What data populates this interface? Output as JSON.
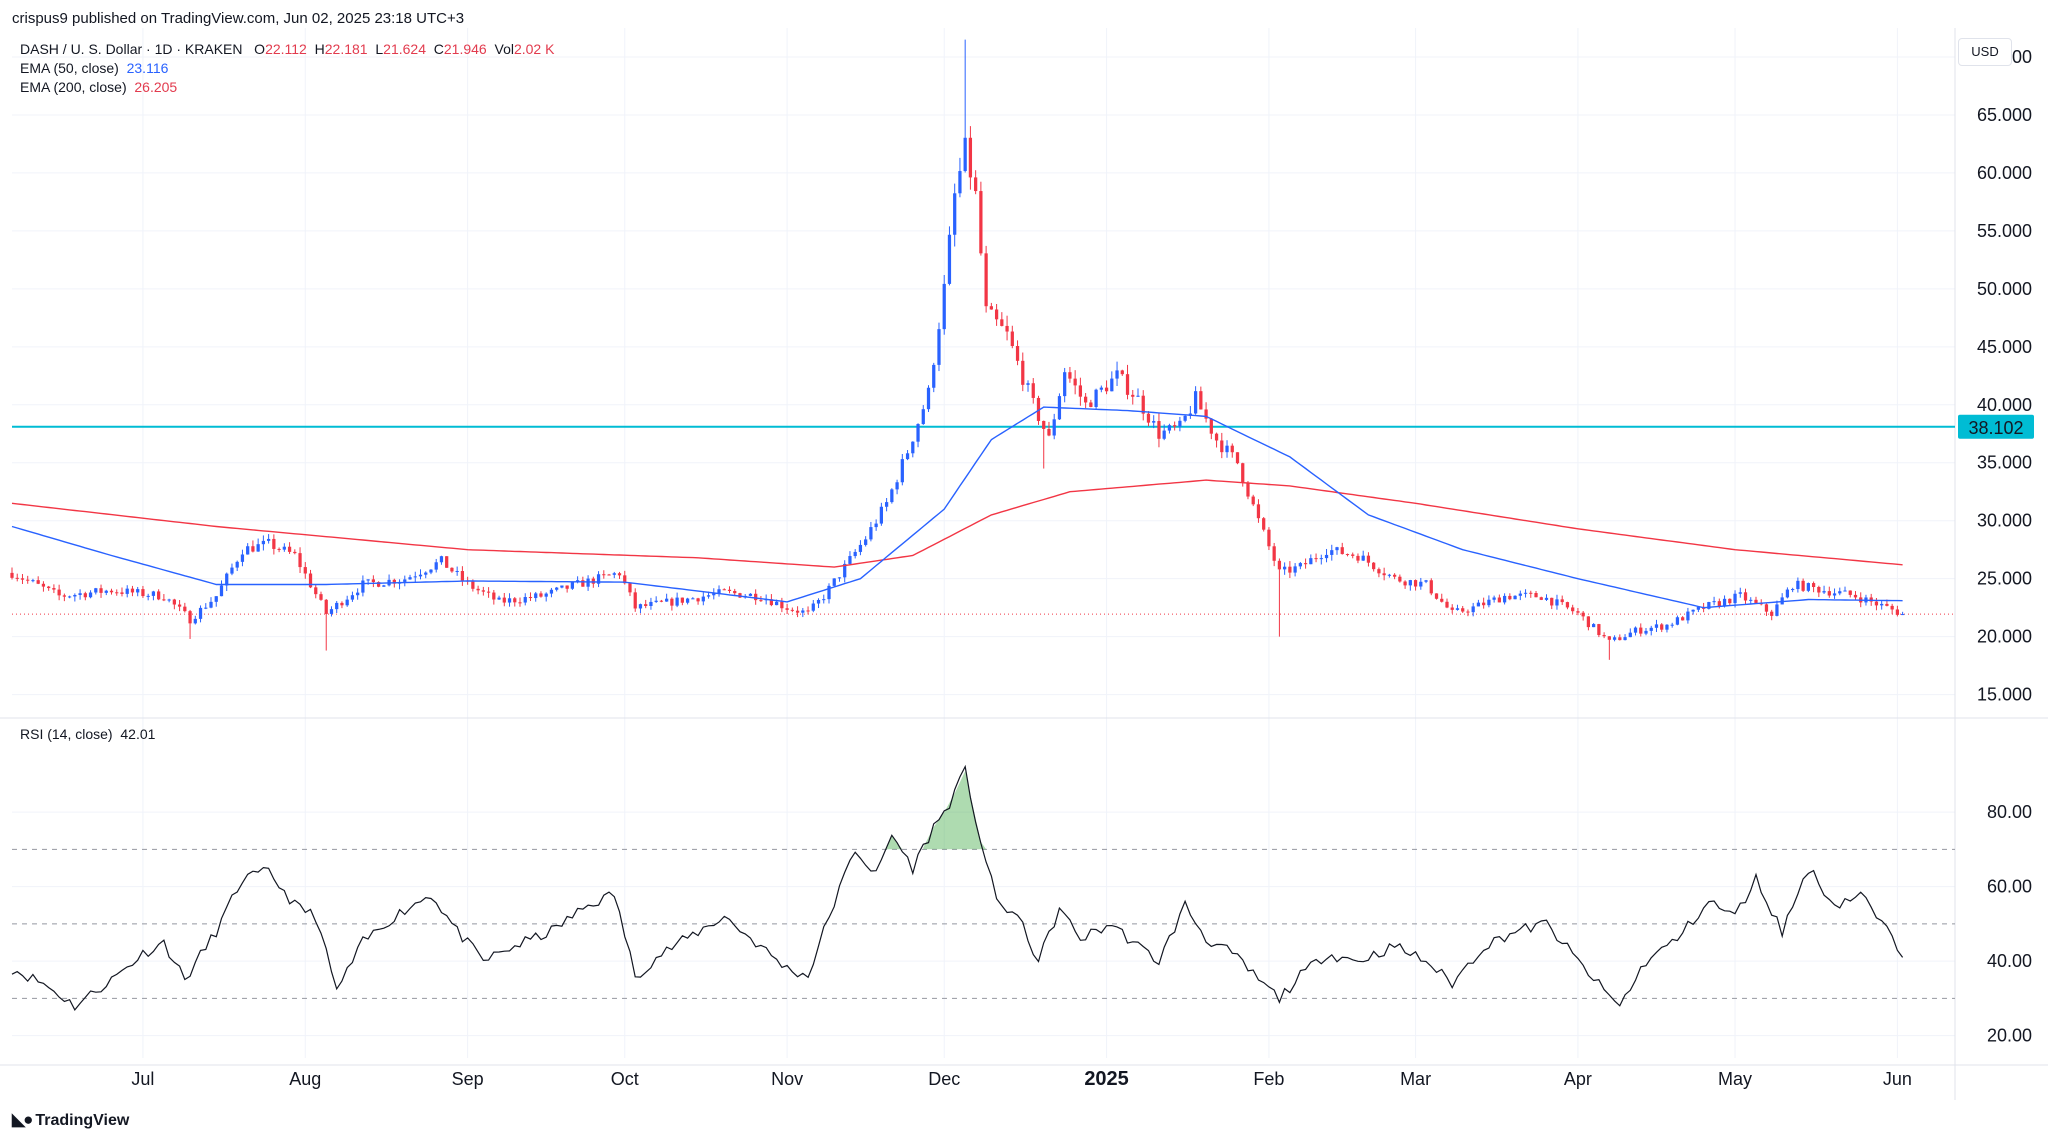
{
  "header": {
    "published": "crispus9 published on TradingView.com, Jun 02, 2025 23:18 UTC+3",
    "symbol": "DASH / U. S. Dollar · 1D · KRAKEN",
    "o_label": "O",
    "o_value": "22.112",
    "h_label": "H",
    "h_value": "22.181",
    "l_label": "L",
    "l_value": "21.624",
    "c_label": "C",
    "c_value": "21.946",
    "vol_label": "Vol",
    "vol_value": "2.02 K",
    "ema50_label": "EMA (50, close)",
    "ema50_value": "23.116",
    "ema200_label": "EMA (200, close)",
    "ema200_value": "26.205"
  },
  "currency_label": "USD",
  "brand": "TradingView",
  "colors": {
    "up": "#2962ff",
    "down": "#f23645",
    "ema50": "#2962ff",
    "ema200": "#f23645",
    "level": "#00bcd4",
    "grid": "#f0f3fa",
    "text": "#131722",
    "rsi": "#131722",
    "rsi_fill": "#4caf50"
  },
  "chart_data": [
    {
      "type": "candlestick",
      "title": "DASH / U. S. Dollar · 1D · KRAKEN",
      "ylim": [
        13.5,
        72.5
      ],
      "y_ticks": [
        "15.000",
        "20.000",
        "25.000",
        "30.000",
        "35.000",
        "40.000",
        "45.000",
        "50.000",
        "55.000",
        "60.000",
        "65.000",
        "70.000"
      ],
      "y_tick_values": [
        15,
        20,
        25,
        30,
        35,
        40,
        45,
        50,
        55,
        60,
        65,
        70
      ],
      "x_ticks": [
        "Jul",
        "Aug",
        "Sep",
        "Oct",
        "Nov",
        "Dec",
        "2025",
        "Feb",
        "Mar",
        "Apr",
        "May",
        "Jun"
      ],
      "x_tick_dates": [
        "2024-07-01",
        "2024-08-01",
        "2024-09-01",
        "2024-10-01",
        "2024-11-01",
        "2024-12-01",
        "2025-01-01",
        "2025-02-01",
        "2025-03-01",
        "2025-04-01",
        "2025-05-01",
        "2025-06-01"
      ],
      "x_range": [
        "2024-06-06",
        "2025-06-12"
      ],
      "price_anchors": [
        [
          "2024-06-06",
          25.5
        ],
        [
          "2024-06-15",
          23.5
        ],
        [
          "2024-06-25",
          24.0
        ],
        [
          "2024-07-05",
          23.5
        ],
        [
          "2024-07-10",
          21.5
        ],
        [
          "2024-07-15",
          23.5
        ],
        [
          "2024-07-20",
          27.5
        ],
        [
          "2024-07-25",
          28.0
        ],
        [
          "2024-07-30",
          27.0
        ],
        [
          "2024-08-05",
          22.0
        ],
        [
          "2024-08-12",
          24.5
        ],
        [
          "2024-08-20",
          25.0
        ],
        [
          "2024-08-27",
          26.5
        ],
        [
          "2024-09-01",
          24.5
        ],
        [
          "2024-09-07",
          23.0
        ],
        [
          "2024-09-15",
          23.5
        ],
        [
          "2024-09-22",
          24.5
        ],
        [
          "2024-09-30",
          25.5
        ],
        [
          "2024-10-03",
          22.5
        ],
        [
          "2024-10-10",
          23.0
        ],
        [
          "2024-10-20",
          23.8
        ],
        [
          "2024-10-27",
          23.5
        ],
        [
          "2024-11-01",
          22.5
        ],
        [
          "2024-11-05",
          22.0
        ],
        [
          "2024-11-08",
          23.5
        ],
        [
          "2024-11-12",
          26.0
        ],
        [
          "2024-11-16",
          28.5
        ],
        [
          "2024-11-20",
          31.5
        ],
        [
          "2024-11-24",
          36.0
        ],
        [
          "2024-11-28",
          41.0
        ],
        [
          "2024-12-01",
          50.0
        ],
        [
          "2024-12-03",
          58.0
        ],
        [
          "2024-12-05",
          62.0
        ],
        [
          "2024-12-07",
          58.0
        ],
        [
          "2024-12-09",
          48.0
        ],
        [
          "2024-12-13",
          46.0
        ],
        [
          "2024-12-18",
          40.0
        ],
        [
          "2024-12-21",
          37.0
        ],
        [
          "2024-12-24",
          43.0
        ],
        [
          "2024-12-28",
          40.0
        ],
        [
          "2025-01-03",
          42.5
        ],
        [
          "2025-01-07",
          40.5
        ],
        [
          "2025-01-11",
          37.5
        ],
        [
          "2025-01-15",
          38.0
        ],
        [
          "2025-01-18",
          40.5
        ],
        [
          "2025-01-22",
          37.0
        ],
        [
          "2025-01-26",
          35.0
        ],
        [
          "2025-01-30",
          30.0
        ],
        [
          "2025-02-03",
          25.5
        ],
        [
          "2025-02-07",
          26.0
        ],
        [
          "2025-02-12",
          27.5
        ],
        [
          "2025-02-18",
          27.0
        ],
        [
          "2025-02-25",
          25.0
        ],
        [
          "2025-03-03",
          24.5
        ],
        [
          "2025-03-08",
          22.0
        ],
        [
          "2025-03-12",
          22.5
        ],
        [
          "2025-03-18",
          23.5
        ],
        [
          "2025-03-25",
          23.5
        ],
        [
          "2025-04-01",
          22.0
        ],
        [
          "2025-04-07",
          19.5
        ],
        [
          "2025-04-12",
          20.5
        ],
        [
          "2025-04-18",
          21.0
        ],
        [
          "2025-04-25",
          22.5
        ],
        [
          "2025-05-02",
          23.5
        ],
        [
          "2025-05-08",
          22.0
        ],
        [
          "2025-05-12",
          24.5
        ],
        [
          "2025-05-18",
          24.0
        ],
        [
          "2025-05-24",
          23.5
        ],
        [
          "2025-05-30",
          22.5
        ],
        [
          "2025-06-02",
          21.95
        ]
      ],
      "price_extremes": [
        [
          "2024-07-10",
          19.8
        ],
        [
          "2024-08-05",
          18.8
        ],
        [
          "2024-12-05",
          71.5
        ],
        [
          "2024-12-20",
          34.5
        ],
        [
          "2025-02-03",
          20.0
        ],
        [
          "2025-04-07",
          18.0
        ]
      ],
      "ema50_anchors": [
        [
          "2024-06-06",
          29.5
        ],
        [
          "2024-06-25",
          27.0
        ],
        [
          "2024-07-15",
          24.5
        ],
        [
          "2024-08-05",
          24.5
        ],
        [
          "2024-09-01",
          24.8
        ],
        [
          "2024-10-01",
          24.7
        ],
        [
          "2024-11-01",
          23.0
        ],
        [
          "2024-11-15",
          25.0
        ],
        [
          "2024-12-01",
          31.0
        ],
        [
          "2024-12-10",
          37.0
        ],
        [
          "2024-12-20",
          39.8
        ],
        [
          "2025-01-05",
          39.5
        ],
        [
          "2025-01-20",
          39.0
        ],
        [
          "2025-02-05",
          35.5
        ],
        [
          "2025-02-20",
          30.5
        ],
        [
          "2025-03-10",
          27.5
        ],
        [
          "2025-04-01",
          25.0
        ],
        [
          "2025-04-25",
          22.5
        ],
        [
          "2025-05-15",
          23.2
        ],
        [
          "2025-06-02",
          23.1
        ]
      ],
      "ema200_anchors": [
        [
          "2024-06-06",
          31.5
        ],
        [
          "2024-07-15",
          29.5
        ],
        [
          "2024-09-01",
          27.5
        ],
        [
          "2024-10-15",
          26.8
        ],
        [
          "2024-11-10",
          26.0
        ],
        [
          "2024-11-25",
          27.0
        ],
        [
          "2024-12-10",
          30.5
        ],
        [
          "2024-12-25",
          32.5
        ],
        [
          "2025-01-20",
          33.5
        ],
        [
          "2025-02-05",
          33.0
        ],
        [
          "2025-03-01",
          31.5
        ],
        [
          "2025-04-01",
          29.3
        ],
        [
          "2025-05-01",
          27.5
        ],
        [
          "2025-06-02",
          26.2
        ]
      ],
      "horizontal_level": {
        "value": 38.102,
        "label": "38.102"
      },
      "last_price": 21.946
    },
    {
      "type": "line",
      "title": "RSI (14, close)",
      "legend_label": "RSI (14, close)",
      "legend_value": "42.01",
      "ylim": [
        14,
        98
      ],
      "y_ticks": [
        "20.00",
        "40.00",
        "60.00",
        "80.00"
      ],
      "y_tick_values": [
        20,
        40,
        60,
        80
      ],
      "bands": [
        30,
        50,
        70
      ],
      "anchors": [
        [
          "2024-06-06",
          38
        ],
        [
          "2024-06-12",
          34
        ],
        [
          "2024-06-18",
          28
        ],
        [
          "2024-06-25",
          35
        ],
        [
          "2024-07-01",
          42
        ],
        [
          "2024-07-05",
          45
        ],
        [
          "2024-07-09",
          35
        ],
        [
          "2024-07-15",
          48
        ],
        [
          "2024-07-20",
          62
        ],
        [
          "2024-07-25",
          64
        ],
        [
          "2024-07-30",
          55
        ],
        [
          "2024-08-03",
          52
        ],
        [
          "2024-08-07",
          32
        ],
        [
          "2024-08-12",
          45
        ],
        [
          "2024-08-18",
          52
        ],
        [
          "2024-08-25",
          58
        ],
        [
          "2024-08-30",
          48
        ],
        [
          "2024-09-04",
          40
        ],
        [
          "2024-09-10",
          44
        ],
        [
          "2024-09-17",
          48
        ],
        [
          "2024-09-24",
          55
        ],
        [
          "2024-09-29",
          58
        ],
        [
          "2024-10-03",
          36
        ],
        [
          "2024-10-08",
          42
        ],
        [
          "2024-10-14",
          47
        ],
        [
          "2024-10-20",
          52
        ],
        [
          "2024-10-26",
          45
        ],
        [
          "2024-11-01",
          38
        ],
        [
          "2024-11-05",
          36
        ],
        [
          "2024-11-09",
          52
        ],
        [
          "2024-11-14",
          70
        ],
        [
          "2024-11-18",
          63
        ],
        [
          "2024-11-21",
          74
        ],
        [
          "2024-11-25",
          65
        ],
        [
          "2024-11-29",
          76
        ],
        [
          "2024-12-01",
          80
        ],
        [
          "2024-12-03",
          85
        ],
        [
          "2024-12-05",
          91
        ],
        [
          "2024-12-08",
          72
        ],
        [
          "2024-12-11",
          56
        ],
        [
          "2024-12-15",
          52
        ],
        [
          "2024-12-19",
          40
        ],
        [
          "2024-12-23",
          54
        ],
        [
          "2024-12-27",
          46
        ],
        [
          "2025-01-02",
          50
        ],
        [
          "2025-01-06",
          45
        ],
        [
          "2025-01-11",
          40
        ],
        [
          "2025-01-16",
          55
        ],
        [
          "2025-01-20",
          46
        ],
        [
          "2025-01-25",
          42
        ],
        [
          "2025-01-30",
          35
        ],
        [
          "2025-02-03",
          30
        ],
        [
          "2025-02-07",
          36
        ],
        [
          "2025-02-12",
          42
        ],
        [
          "2025-02-18",
          40
        ],
        [
          "2025-02-25",
          44
        ],
        [
          "2025-03-03",
          40
        ],
        [
          "2025-03-08",
          34
        ],
        [
          "2025-03-14",
          44
        ],
        [
          "2025-03-20",
          48
        ],
        [
          "2025-03-26",
          50
        ],
        [
          "2025-04-01",
          40
        ],
        [
          "2025-04-06",
          32
        ],
        [
          "2025-04-09",
          28
        ],
        [
          "2025-04-14",
          40
        ],
        [
          "2025-04-20",
          46
        ],
        [
          "2025-04-26",
          56
        ],
        [
          "2025-05-01",
          52
        ],
        [
          "2025-05-05",
          62
        ],
        [
          "2025-05-10",
          48
        ],
        [
          "2025-05-15",
          65
        ],
        [
          "2025-05-20",
          55
        ],
        [
          "2025-05-25",
          58
        ],
        [
          "2025-05-29",
          50
        ],
        [
          "2025-06-02",
          42
        ]
      ]
    }
  ]
}
